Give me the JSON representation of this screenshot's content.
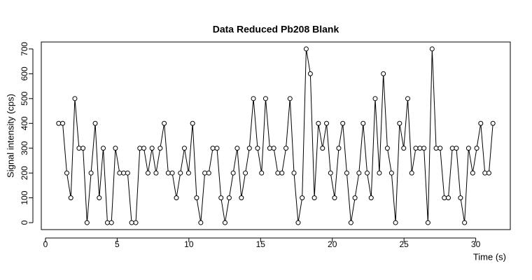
{
  "chart_data": {
    "type": "line",
    "title": "Data Reduced Pb208 Blank",
    "x_label": "Time (s)",
    "y_label": "Signal intensity (cps)",
    "x": [
      0.92,
      1.2,
      1.49,
      1.77,
      2.05,
      2.34,
      2.62,
      2.9,
      3.18,
      3.47,
      3.75,
      4.03,
      4.32,
      4.6,
      4.88,
      5.17,
      5.45,
      5.73,
      6.01,
      6.3,
      6.58,
      6.86,
      7.15,
      7.43,
      7.71,
      8.0,
      8.28,
      8.56,
      8.84,
      9.13,
      9.41,
      9.69,
      9.98,
      10.26,
      10.54,
      10.83,
      11.11,
      11.39,
      11.67,
      11.96,
      12.24,
      12.52,
      12.81,
      13.09,
      13.37,
      13.66,
      13.94,
      14.22,
      14.5,
      14.79,
      15.07,
      15.35,
      15.64,
      15.92,
      16.2,
      16.49,
      16.77,
      17.05,
      17.33,
      17.62,
      17.9,
      18.18,
      18.47,
      18.75,
      19.03,
      19.32,
      19.6,
      19.88,
      20.16,
      20.45,
      20.73,
      21.01,
      21.3,
      21.58,
      21.86,
      22.15,
      22.43,
      22.71,
      22.99,
      23.28,
      23.56,
      23.84,
      24.13,
      24.41,
      24.69,
      24.98,
      25.26,
      25.54,
      25.82,
      26.11,
      26.39,
      26.67,
      26.96,
      27.24,
      27.52,
      27.81,
      28.09,
      28.37,
      28.65,
      28.94,
      29.22,
      29.5,
      29.79,
      30.07,
      30.35,
      30.64,
      30.92,
      31.2
    ],
    "series": [
      {
        "color": "#000000",
        "values": [
          400,
          400,
          200,
          100,
          500,
          300,
          300,
          0,
          200,
          400,
          100,
          300,
          0,
          0,
          300,
          200,
          200,
          200,
          0,
          0,
          300,
          300,
          200,
          300,
          200,
          300,
          400,
          200,
          200,
          100,
          200,
          300,
          200,
          400,
          100,
          0,
          200,
          200,
          300,
          300,
          100,
          0,
          100,
          200,
          300,
          100,
          200,
          300,
          500,
          300,
          200,
          500,
          300,
          300,
          200,
          200,
          300,
          500,
          200,
          0,
          100,
          700,
          600,
          100,
          400,
          300,
          400,
          200,
          100,
          300,
          400,
          200,
          0,
          100,
          200,
          400,
          200,
          100,
          500,
          200,
          600,
          300,
          200,
          0,
          400,
          300,
          500,
          200,
          300,
          300,
          300,
          0,
          700,
          300,
          300,
          100,
          100,
          300,
          300,
          100,
          0,
          300,
          200,
          300,
          400,
          200,
          200,
          400
        ]
      }
    ],
    "xlim": [
      -0.29,
      32.41
    ],
    "ylim": [
      -28,
      728
    ],
    "xticks": [
      0,
      5,
      10,
      15,
      20,
      25,
      30
    ],
    "yticks": [
      0,
      100,
      200,
      300,
      400,
      500,
      600,
      700
    ]
  }
}
